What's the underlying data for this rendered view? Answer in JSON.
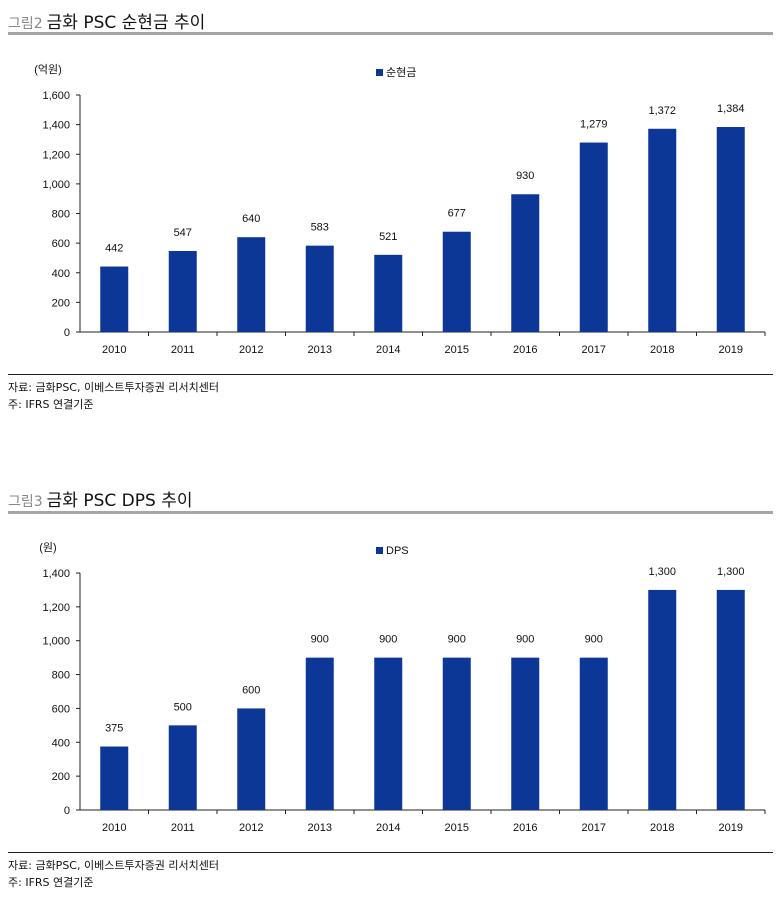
{
  "figures": [
    {
      "fig_label": "그림2",
      "title": "금화 PSC 순현금 추이",
      "source": "자료: 금화PSC, 이베스트투자증권 리서치센터",
      "note": "주: IFRS 연결기준"
    },
    {
      "fig_label": "그림3",
      "title": "금화 PSC DPS 추이",
      "source": "자료: 금화PSC, 이베스트투자증권 리서치센터",
      "note": "주: IFRS 연결기준"
    }
  ],
  "chart_data": [
    {
      "type": "bar",
      "title": "",
      "ylabel": "(억원)",
      "ylim": [
        0,
        1600
      ],
      "yticks": [
        0,
        200,
        400,
        600,
        800,
        1000,
        1200,
        1400,
        1600
      ],
      "categories": [
        "2010",
        "2011",
        "2012",
        "2013",
        "2014",
        "2015",
        "2016",
        "2017",
        "2018",
        "2019"
      ],
      "series": [
        {
          "name": "순현금",
          "values": [
            442,
            547,
            640,
            583,
            521,
            677,
            930,
            1279,
            1372,
            1384
          ],
          "color": "#0d3797"
        }
      ],
      "legend": "top-center",
      "grid": false
    },
    {
      "type": "bar",
      "title": "",
      "ylabel": "(원)",
      "ylim": [
        0,
        1400
      ],
      "yticks": [
        0,
        200,
        400,
        600,
        800,
        1000,
        1200,
        1400
      ],
      "categories": [
        "2010",
        "2011",
        "2012",
        "2013",
        "2014",
        "2015",
        "2016",
        "2017",
        "2018",
        "2019"
      ],
      "series": [
        {
          "name": "DPS",
          "values": [
            375,
            500,
            600,
            900,
            900,
            900,
            900,
            900,
            1300,
            1300
          ],
          "color": "#0d3797"
        }
      ],
      "legend": "top-center",
      "grid": false
    }
  ]
}
